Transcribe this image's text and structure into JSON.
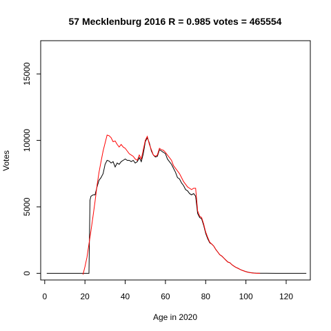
{
  "chart_data": {
    "type": "line",
    "title": "57 Mecklenburg 2016 R = 0.985 votes = 465554",
    "xlabel": "Age in 2020",
    "ylabel": "Votes",
    "xlim": [
      -2,
      132
    ],
    "ylim": [
      -500,
      17500
    ],
    "xticks": [
      0,
      20,
      40,
      60,
      80,
      100,
      120
    ],
    "yticks": [
      0,
      5000,
      10000,
      15000
    ],
    "grid": false,
    "series": [
      {
        "color": "#000000",
        "points": [
          [
            1,
            0
          ],
          [
            2,
            0
          ],
          [
            5,
            0
          ],
          [
            10,
            0
          ],
          [
            15,
            0
          ],
          [
            18,
            0
          ],
          [
            20,
            0
          ],
          [
            21,
            0
          ],
          [
            22,
            0
          ],
          [
            22.5,
            5500
          ],
          [
            23,
            5800
          ],
          [
            24,
            5900
          ],
          [
            25,
            5900
          ],
          [
            26,
            6500
          ],
          [
            27,
            7000
          ],
          [
            28,
            7200
          ],
          [
            29,
            7500
          ],
          [
            30,
            8200
          ],
          [
            31,
            8500
          ],
          [
            32,
            8450
          ],
          [
            33,
            8300
          ],
          [
            34,
            8400
          ],
          [
            35,
            8000
          ],
          [
            36,
            8300
          ],
          [
            37,
            8200
          ],
          [
            38,
            8400
          ],
          [
            39,
            8500
          ],
          [
            40,
            8600
          ],
          [
            41,
            8500
          ],
          [
            42,
            8500
          ],
          [
            43,
            8400
          ],
          [
            44,
            8500
          ],
          [
            45,
            8300
          ],
          [
            46,
            8400
          ],
          [
            47,
            8700
          ],
          [
            48,
            8400
          ],
          [
            49,
            9000
          ],
          [
            50,
            9900
          ],
          [
            51,
            10200
          ],
          [
            52,
            9800
          ],
          [
            53,
            9200
          ],
          [
            54,
            8900
          ],
          [
            55,
            8750
          ],
          [
            56,
            8800
          ],
          [
            57,
            9300
          ],
          [
            58,
            9200
          ],
          [
            59,
            9100
          ],
          [
            60,
            9000
          ],
          [
            61,
            8600
          ],
          [
            62,
            8400
          ],
          [
            63,
            8200
          ],
          [
            64,
            7900
          ],
          [
            65,
            7600
          ],
          [
            66,
            7200
          ],
          [
            67,
            7100
          ],
          [
            68,
            6800
          ],
          [
            69,
            6600
          ],
          [
            70,
            6300
          ],
          [
            71,
            6200
          ],
          [
            72,
            6000
          ],
          [
            73,
            5900
          ],
          [
            74,
            6000
          ],
          [
            75,
            5800
          ],
          [
            76,
            4500
          ],
          [
            77,
            4200
          ],
          [
            78,
            4100
          ],
          [
            79,
            3600
          ],
          [
            80,
            3000
          ],
          [
            81,
            2600
          ],
          [
            82,
            2300
          ],
          [
            83,
            2200
          ],
          [
            84,
            2050
          ],
          [
            85,
            1800
          ],
          [
            86,
            1600
          ],
          [
            87,
            1400
          ],
          [
            88,
            1300
          ],
          [
            89,
            1150
          ],
          [
            90,
            1000
          ],
          [
            91,
            850
          ],
          [
            92,
            800
          ],
          [
            93,
            650
          ],
          [
            94,
            550
          ],
          [
            95,
            450
          ],
          [
            96,
            380
          ],
          [
            97,
            300
          ],
          [
            98,
            230
          ],
          [
            99,
            180
          ],
          [
            100,
            130
          ],
          [
            101,
            90
          ],
          [
            102,
            60
          ],
          [
            103,
            40
          ],
          [
            104,
            25
          ],
          [
            105,
            15
          ],
          [
            106,
            8
          ],
          [
            108,
            3
          ],
          [
            110,
            1
          ],
          [
            115,
            0
          ],
          [
            120,
            0
          ],
          [
            125,
            0
          ],
          [
            130,
            0
          ]
        ]
      },
      {
        "color": "#ff0000",
        "points": [
          [
            19,
            -100
          ],
          [
            20,
            500
          ],
          [
            21,
            1200
          ],
          [
            22,
            2200
          ],
          [
            23,
            3200
          ],
          [
            24,
            4300
          ],
          [
            25,
            5400
          ],
          [
            26,
            6600
          ],
          [
            27,
            7600
          ],
          [
            28,
            8400
          ],
          [
            29,
            9200
          ],
          [
            30,
            9800
          ],
          [
            31,
            10400
          ],
          [
            32,
            10350
          ],
          [
            33,
            10200
          ],
          [
            34,
            9900
          ],
          [
            35,
            9950
          ],
          [
            36,
            9700
          ],
          [
            37,
            9500
          ],
          [
            38,
            9700
          ],
          [
            39,
            9500
          ],
          [
            40,
            9400
          ],
          [
            41,
            9200
          ],
          [
            42,
            9000
          ],
          [
            43,
            8900
          ],
          [
            44,
            8800
          ],
          [
            45,
            8600
          ],
          [
            46,
            8500
          ],
          [
            47,
            8900
          ],
          [
            48,
            8600
          ],
          [
            49,
            9300
          ],
          [
            50,
            10000
          ],
          [
            51,
            10300
          ],
          [
            52,
            9700
          ],
          [
            53,
            9300
          ],
          [
            54,
            8900
          ],
          [
            55,
            8800
          ],
          [
            56,
            8900
          ],
          [
            57,
            9400
          ],
          [
            58,
            9300
          ],
          [
            59,
            9250
          ],
          [
            60,
            9100
          ],
          [
            61,
            8900
          ],
          [
            62,
            8700
          ],
          [
            63,
            8500
          ],
          [
            64,
            8100
          ],
          [
            65,
            7900
          ],
          [
            66,
            7700
          ],
          [
            67,
            7500
          ],
          [
            68,
            7200
          ],
          [
            69,
            6900
          ],
          [
            70,
            6700
          ],
          [
            71,
            6500
          ],
          [
            72,
            6400
          ],
          [
            73,
            6300
          ],
          [
            74,
            6400
          ],
          [
            75,
            6400
          ],
          [
            76,
            4700
          ],
          [
            77,
            4300
          ],
          [
            78,
            4200
          ],
          [
            79,
            3700
          ],
          [
            80,
            3100
          ],
          [
            81,
            2700
          ],
          [
            82,
            2350
          ],
          [
            83,
            2200
          ],
          [
            84,
            2050
          ],
          [
            85,
            1800
          ],
          [
            86,
            1600
          ],
          [
            87,
            1400
          ],
          [
            88,
            1300
          ],
          [
            89,
            1150
          ],
          [
            90,
            1000
          ],
          [
            91,
            850
          ],
          [
            92,
            800
          ],
          [
            93,
            650
          ],
          [
            94,
            550
          ],
          [
            95,
            450
          ],
          [
            96,
            380
          ],
          [
            97,
            300
          ],
          [
            98,
            230
          ],
          [
            99,
            180
          ],
          [
            100,
            120
          ],
          [
            101,
            80
          ],
          [
            102,
            50
          ],
          [
            103,
            30
          ],
          [
            104,
            15
          ],
          [
            105,
            8
          ],
          [
            106,
            3
          ],
          [
            107,
            0
          ]
        ]
      }
    ]
  }
}
